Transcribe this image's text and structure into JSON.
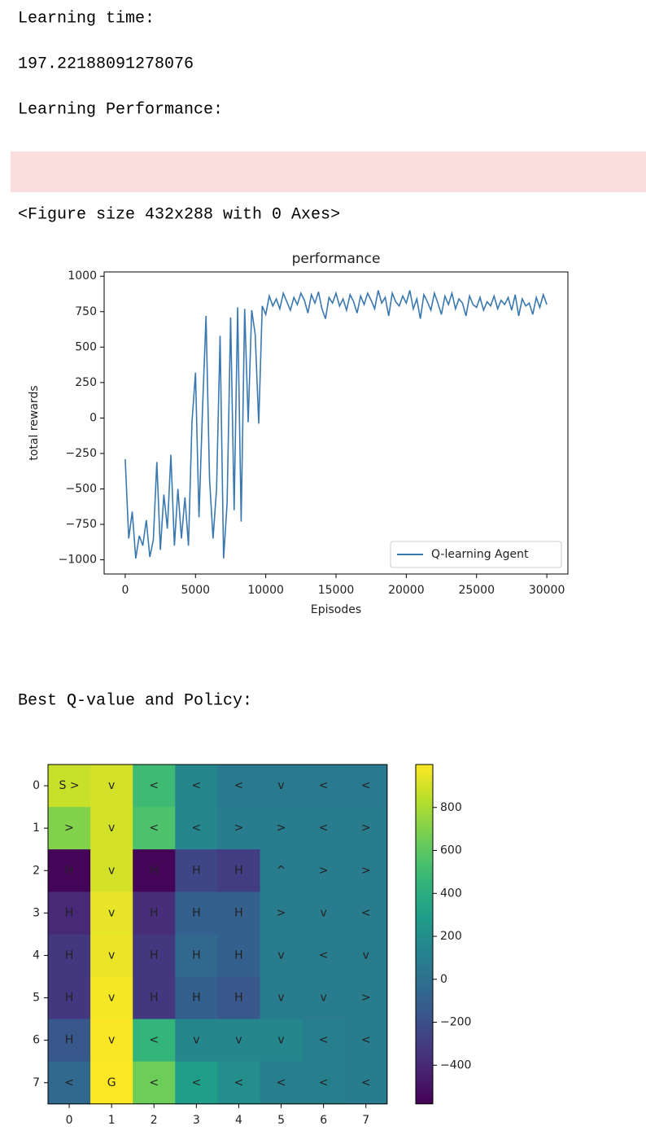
{
  "outputs": {
    "learning_time_label": "Learning time:",
    "learning_time": "197.22188091278076",
    "performance_label": "Learning Performance:",
    "figure_repr": "<Figure size 432x288 with 0 Axes>",
    "policy_label": "Best Q-value and Policy:"
  },
  "chart_data": [
    {
      "type": "line",
      "title": "performance",
      "x_label": "Episodes",
      "y_label": "total rewards",
      "xlim": [
        -1500,
        31500
      ],
      "ylim": [
        -1100,
        1030
      ],
      "xticks": [
        0,
        5000,
        10000,
        15000,
        20000,
        25000,
        30000
      ],
      "yticks": [
        {
          "value": -1000,
          "label": "−1000"
        },
        {
          "value": -750,
          "label": "−750"
        },
        {
          "value": -500,
          "label": "−500"
        },
        {
          "value": -250,
          "label": "−250"
        },
        0,
        250,
        500,
        750,
        1000
      ],
      "legend": "lower right",
      "x": [
        0,
        250,
        500,
        750,
        1000,
        1250,
        1500,
        1750,
        2000,
        2250,
        2500,
        2750,
        3000,
        3250,
        3500,
        3750,
        4000,
        4250,
        4500,
        4750,
        5000,
        5250,
        5500,
        5750,
        6000,
        6250,
        6500,
        6750,
        7000,
        7250,
        7500,
        7750,
        8000,
        8250,
        8500,
        8750,
        9000,
        9250,
        9500,
        9750,
        10000,
        10250,
        10500,
        10750,
        11000,
        11250,
        11500,
        11750,
        12000,
        12250,
        12500,
        12750,
        13000,
        13250,
        13500,
        13750,
        14000,
        14250,
        14500,
        14750,
        15000,
        15250,
        15500,
        15750,
        16000,
        16250,
        16500,
        16750,
        17000,
        17250,
        17500,
        17750,
        18000,
        18250,
        18500,
        18750,
        19000,
        19250,
        19500,
        19750,
        20000,
        20250,
        20500,
        20750,
        21000,
        21250,
        21500,
        21750,
        22000,
        22250,
        22500,
        22750,
        23000,
        23250,
        23500,
        23750,
        24000,
        24250,
        24500,
        24750,
        25000,
        25250,
        25500,
        25750,
        26000,
        26250,
        26500,
        26750,
        27000,
        27250,
        27500,
        27750,
        28000,
        28250,
        28500,
        28750,
        29000,
        29250,
        29500,
        29750,
        30000
      ],
      "series": [
        {
          "name": "Q-learning Agent",
          "color": "#3a78b0",
          "values": [
            -290,
            -850,
            -660,
            -990,
            -830,
            -900,
            -720,
            -980,
            -860,
            -310,
            -930,
            -540,
            -780,
            -260,
            -900,
            -500,
            -850,
            -560,
            -900,
            -30,
            320,
            -700,
            60,
            720,
            -430,
            -850,
            -500,
            580,
            -990,
            -600,
            710,
            -650,
            780,
            -730,
            770,
            -30,
            760,
            590,
            -40,
            790,
            730,
            860,
            790,
            840,
            770,
            880,
            820,
            760,
            850,
            800,
            880,
            830,
            740,
            870,
            810,
            890,
            770,
            700,
            850,
            810,
            880,
            790,
            840,
            760,
            870,
            820,
            740,
            860,
            800,
            880,
            830,
            770,
            900,
            810,
            850,
            720,
            880,
            820,
            790,
            860,
            810,
            900,
            770,
            840,
            700,
            870,
            820,
            760,
            880,
            810,
            730,
            860,
            800,
            880,
            770,
            840,
            810,
            720,
            860,
            800,
            780,
            850,
            760,
            820,
            790,
            860,
            770,
            830,
            800,
            850,
            760,
            870,
            720,
            840,
            790,
            810,
            730,
            850,
            780,
            870,
            800
          ]
        }
      ]
    },
    {
      "type": "heatmap",
      "colormap": "viridis",
      "clim": [
        -580,
        1000
      ],
      "cticks": [
        {
          "value": -400,
          "label": "−400"
        },
        {
          "value": -200,
          "label": "−200"
        },
        0,
        200,
        400,
        600,
        800
      ],
      "x_categories": [
        0,
        1,
        2,
        3,
        4,
        5,
        6,
        7
      ],
      "y_categories": [
        0,
        1,
        2,
        3,
        4,
        5,
        6,
        7
      ],
      "z": [
        [
          870,
          900,
          500,
          150,
          70,
          70,
          70,
          70
        ],
        [
          700,
          900,
          550,
          150,
          80,
          80,
          80,
          80
        ],
        [
          -560,
          900,
          -560,
          -250,
          -300,
          80,
          80,
          80
        ],
        [
          -400,
          950,
          -380,
          -100,
          -100,
          80,
          80,
          80
        ],
        [
          -320,
          960,
          -320,
          -50,
          -100,
          80,
          80,
          80
        ],
        [
          -320,
          980,
          -320,
          -100,
          -150,
          80,
          80,
          80
        ],
        [
          -150,
          990,
          450,
          150,
          150,
          150,
          100,
          80
        ],
        [
          -50,
          1000,
          650,
          300,
          200,
          100,
          100,
          80
        ]
      ],
      "annotations": [
        [
          "S >",
          "v",
          "<",
          "<",
          "<",
          "v",
          "<",
          "<"
        ],
        [
          ">",
          "v",
          "<",
          "<",
          ">",
          ">",
          "<",
          ">"
        ],
        [
          "H",
          "v",
          "H",
          "H",
          "H",
          "^",
          ">",
          ">"
        ],
        [
          "H",
          "v",
          "H",
          "H",
          "H",
          ">",
          "v",
          "<"
        ],
        [
          "H",
          "v",
          "H",
          "H",
          "H",
          "v",
          "<",
          "v"
        ],
        [
          "H",
          "v",
          "H",
          "H",
          "H",
          "v",
          "v",
          ">"
        ],
        [
          "H",
          "v",
          "<",
          "v",
          "v",
          "v",
          "<",
          "<"
        ],
        [
          "<",
          "G",
          "<",
          "<",
          "<",
          "<",
          "<",
          "<"
        ]
      ]
    }
  ]
}
